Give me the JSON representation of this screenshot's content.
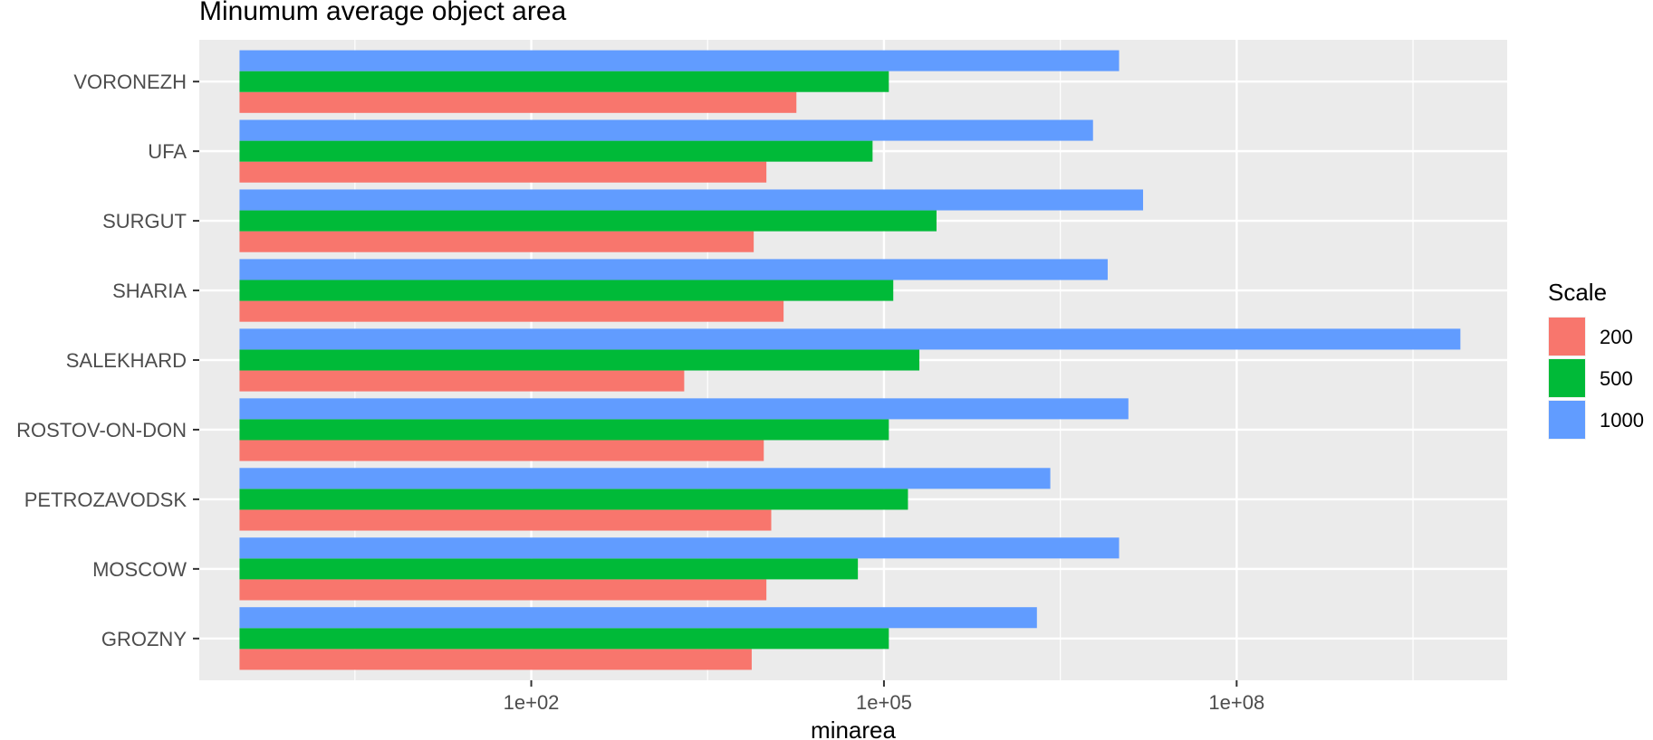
{
  "chart_data": {
    "type": "bar",
    "orientation": "horizontal",
    "title": "Minumum average object area",
    "xlabel": "minarea",
    "ylabel": "",
    "x_scale": "log10",
    "xlim": [
      0.15,
      20000000000.0
    ],
    "x_ticks": [
      {
        "value": 100,
        "label": "1e+02"
      },
      {
        "value": 100000,
        "label": "1e+05"
      },
      {
        "value": 100000000,
        "label": "1e+08"
      }
    ],
    "grid": true,
    "legend": {
      "title": "Scale",
      "position": "right"
    },
    "categories": [
      "VORONEZH",
      "UFA",
      "SURGUT",
      "SHARIA",
      "SALEKHARD",
      "ROSTOV-ON-DON",
      "PETROZAVODSK",
      "MOSCOW",
      "GROZNY"
    ],
    "series": [
      {
        "name": "200",
        "color": "#F8766D",
        "values": [
          18000,
          10000,
          7800,
          14000,
          2000,
          9500,
          11000,
          10000,
          7500
        ]
      },
      {
        "name": "500",
        "color": "#00BA38",
        "values": [
          110000,
          80000,
          280000,
          120000,
          200000,
          110000,
          160000,
          60000,
          110000
        ]
      },
      {
        "name": "1000",
        "color": "#619CFF",
        "values": [
          10000000,
          6000000,
          16000000,
          8000000,
          8000000000,
          12000000,
          2600000,
          10000000,
          2000000
        ]
      }
    ]
  }
}
